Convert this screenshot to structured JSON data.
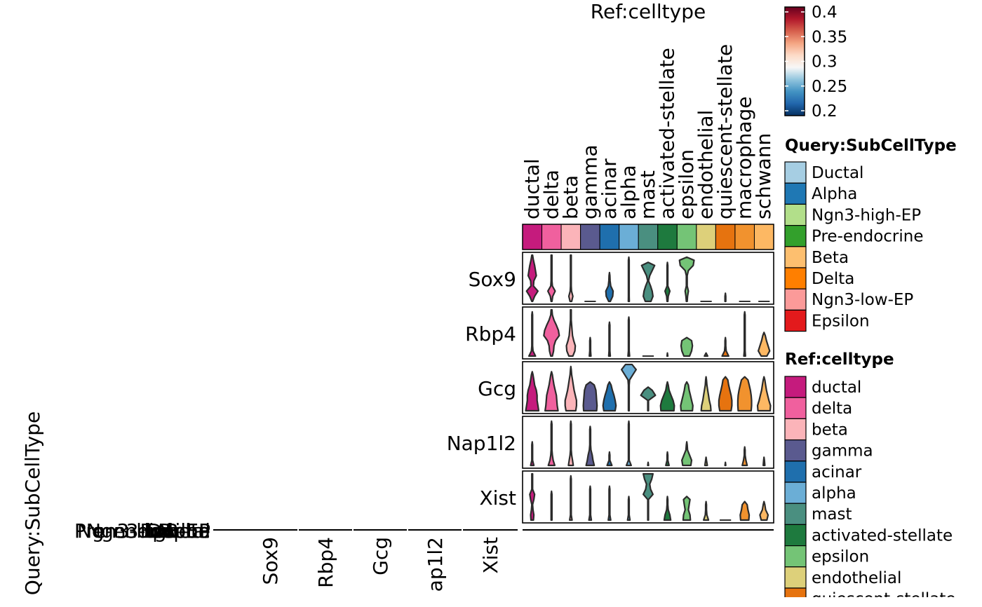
{
  "chart_data": [
    {
      "type": "violin",
      "title": "Ref:celltype",
      "genes": [
        "Sox9",
        "Rbp4",
        "Gcg",
        "Nap1l2",
        "Xist"
      ],
      "celltypes": [
        "ductal",
        "delta",
        "beta",
        "gamma",
        "acinar",
        "alpha",
        "mast",
        "activated-stellate",
        "epsilon",
        "endothelial",
        "quiescent-stellate",
        "macrophage",
        "schwann"
      ],
      "celltype_colors": [
        "#C51B7D",
        "#F0609E",
        "#FBB4B9",
        "#5A5A8F",
        "#1F6FAD",
        "#6BAED6",
        "#4A8F80",
        "#1E7A3E",
        "#74C476",
        "#DDD07A",
        "#E6730F",
        "#F1922E",
        "#FDB863"
      ],
      "profiles": {
        "Sox9": [
          [
            0.05,
            0.3,
            0.7,
            0.15,
            0.2,
            0.5,
            0.4,
            0.3,
            0.15,
            0.05
          ],
          [
            0.05,
            0.15,
            0.45,
            0.1,
            0.05,
            0.05,
            0.05,
            0.05,
            0.05,
            0.05
          ],
          [
            0.1,
            0.25,
            0.08,
            0.05,
            0.05,
            0.05,
            0.05,
            0.05,
            0.05,
            0.05
          ],
          [
            0,
            0,
            0,
            0,
            0,
            0,
            0,
            0,
            0,
            0
          ],
          [
            0.1,
            0.4,
            0.45,
            0.15,
            0.08,
            0.05,
            0,
            0,
            0,
            0
          ],
          [
            0.06,
            0.05,
            0.05,
            0.05,
            0.05,
            0.05,
            0.05,
            0.05,
            0.05,
            0
          ],
          [
            0.35,
            0.6,
            0.5,
            0.3,
            0.05,
            0.2,
            0.5,
            0.8,
            0,
            0
          ],
          [
            0.05,
            0.1,
            0.3,
            0.05,
            0.05,
            0.05,
            0.05,
            0.05,
            0,
            0
          ],
          [
            0.05,
            0.1,
            0.2,
            0.05,
            0.05,
            0.05,
            0.2,
            0.8,
            0.9,
            0
          ],
          [
            0,
            0,
            0,
            0,
            0,
            0,
            0,
            0,
            0,
            0
          ],
          [
            0.05,
            0.05,
            0,
            0,
            0,
            0,
            0,
            0,
            0,
            0
          ],
          [
            0,
            0,
            0,
            0,
            0,
            0,
            0,
            0,
            0,
            0
          ],
          [
            0,
            0,
            0,
            0,
            0,
            0,
            0,
            0,
            0,
            0
          ]
        ],
        "Rbp4": [
          [
            0.4,
            0.1,
            0.05,
            0.05,
            0.05,
            0.05,
            0.05,
            0.05,
            0.05,
            0
          ],
          [
            0.1,
            0.25,
            0.3,
            0.5,
            0.95,
            0.85,
            0.6,
            0.3,
            0.1,
            0.05
          ],
          [
            0.25,
            0.5,
            0.55,
            0.35,
            0.2,
            0.15,
            0.1,
            0.05,
            0.05,
            0.05
          ],
          [
            0.1,
            0.05,
            0.05,
            0.05,
            0,
            0,
            0,
            0,
            0,
            0
          ],
          [
            0.1,
            0.05,
            0.05,
            0.05,
            0.05,
            0.05,
            0.05,
            0,
            0,
            0
          ],
          [
            0.1,
            0.05,
            0.05,
            0.05,
            0.05,
            0.05,
            0.05,
            0.05,
            0,
            0
          ],
          [
            0,
            0,
            0,
            0,
            0,
            0,
            0,
            0,
            0,
            0
          ],
          [
            0.05,
            0,
            0,
            0,
            0,
            0,
            0,
            0,
            0,
            0
          ],
          [
            0.35,
            0.6,
            0.7,
            0.6,
            0,
            0,
            0,
            0,
            0,
            0
          ],
          [
            0.2,
            0,
            0,
            0,
            0,
            0,
            0,
            0,
            0,
            0
          ],
          [
            0.4,
            0.1,
            0.05,
            0.05,
            0,
            0,
            0,
            0,
            0,
            0
          ],
          [
            0.1,
            0.05,
            0.05,
            0.05,
            0.05,
            0.05,
            0.05,
            0.05,
            0.05,
            0
          ],
          [
            0.35,
            0.7,
            0.5,
            0.3,
            0.15,
            0,
            0,
            0,
            0,
            0
          ]
        ],
        "Gcg": [
          [
            0.8,
            0.7,
            0.6,
            0.6,
            0.5,
            0.3,
            0.2,
            0.1,
            0,
            0
          ],
          [
            0.8,
            0.7,
            0.65,
            0.6,
            0.45,
            0.3,
            0.2,
            0.1,
            0,
            0
          ],
          [
            0.6,
            0.7,
            0.7,
            0.55,
            0.4,
            0.3,
            0.2,
            0.1,
            0.05,
            0
          ],
          [
            0.8,
            0.85,
            0.8,
            0.75,
            0.7,
            0.5,
            0,
            0,
            0,
            0
          ],
          [
            0.7,
            0.8,
            0.7,
            0.55,
            0.35,
            0.2,
            0,
            0,
            0,
            0
          ],
          [
            0.05,
            0.05,
            0.05,
            0.05,
            0.05,
            0.05,
            0.1,
            0.5,
            0.9,
            0.4
          ],
          [
            0,
            0,
            0,
            0.9,
            0.5,
            0,
            0,
            0,
            0,
            0
          ],
          [
            0.8,
            0.85,
            0.7,
            0.45,
            0.2,
            0.1,
            0,
            0,
            0,
            0
          ],
          [
            0.7,
            0.75,
            0.6,
            0.45,
            0.3,
            0.2,
            0,
            0,
            0,
            0
          ],
          [
            0.6,
            0.55,
            0.4,
            0.3,
            0.2,
            0.1,
            0.05,
            0,
            0,
            0
          ],
          [
            0.7,
            0.8,
            0.8,
            0.7,
            0.55,
            0.4,
            0.3,
            0,
            0,
            0
          ],
          [
            0.8,
            0.85,
            0.85,
            0.8,
            0.7,
            0.55,
            0.4,
            0,
            0,
            0
          ],
          [
            0.75,
            0.8,
            0.6,
            0.45,
            0.3,
            0.2,
            0.1,
            0,
            0,
            0
          ]
        ],
        "Nap1l2": [
          [
            0.2,
            0.05,
            0.05,
            0.05,
            0.05,
            0,
            0,
            0,
            0,
            0
          ],
          [
            0.4,
            0.2,
            0.1,
            0.05,
            0.05,
            0.05,
            0.05,
            0.05,
            0.05,
            0
          ],
          [
            0.3,
            0.2,
            0.1,
            0.05,
            0.05,
            0.05,
            0.05,
            0.05,
            0.05,
            0
          ],
          [
            0.5,
            0.35,
            0.25,
            0.1,
            0.05,
            0.05,
            0.05,
            0.05,
            0,
            0
          ],
          [
            0.3,
            0.05,
            0.05,
            0,
            0,
            0,
            0,
            0,
            0,
            0
          ],
          [
            0.3,
            0.05,
            0.05,
            0.05,
            0.05,
            0.05,
            0.05,
            0.05,
            0.05,
            0
          ],
          [
            0.05,
            0,
            0,
            0,
            0,
            0,
            0,
            0,
            0,
            0
          ],
          [
            0.2,
            0.05,
            0.05,
            0,
            0,
            0,
            0,
            0,
            0,
            0
          ],
          [
            0.5,
            0.6,
            0.35,
            0.1,
            0.05,
            0,
            0,
            0,
            0,
            0
          ],
          [
            0.15,
            0.05,
            0,
            0,
            0,
            0,
            0,
            0,
            0,
            0
          ],
          [
            0.05,
            0,
            0,
            0,
            0,
            0,
            0,
            0,
            0,
            0
          ],
          [
            0.3,
            0.15,
            0.05,
            0.05,
            0,
            0,
            0,
            0,
            0,
            0
          ],
          [
            0.1,
            0.05,
            0,
            0,
            0,
            0,
            0,
            0,
            0,
            0
          ]
        ],
        "Xist": [
          [
            0.15,
            0.2,
            0.1,
            0.05,
            0.2,
            0.3,
            0.05,
            0.05,
            0.05,
            0.05
          ],
          [
            0.05,
            0.05,
            0.05,
            0.05,
            0.05,
            0.05,
            0,
            0,
            0,
            0
          ],
          [
            0.15,
            0.05,
            0.05,
            0.05,
            0.05,
            0.05,
            0.05,
            0.05,
            0.05,
            0
          ],
          [
            0.15,
            0.05,
            0.05,
            0.05,
            0.05,
            0.05,
            0.05,
            0,
            0,
            0
          ],
          [
            0.15,
            0.05,
            0.05,
            0.05,
            0.05,
            0.05,
            0.05,
            0,
            0,
            0
          ],
          [
            0.15,
            0.05,
            0.05,
            0.05,
            0.05,
            0,
            0,
            0,
            0,
            0
          ],
          [
            0,
            0,
            0,
            0,
            0,
            0.6,
            0.3,
            0.2,
            0.45,
            0.6
          ],
          [
            0.4,
            0.3,
            0.1,
            0.05,
            0.05,
            0,
            0,
            0,
            0,
            0
          ],
          [
            0.45,
            0.4,
            0.2,
            0.3,
            0.4,
            0,
            0,
            0,
            0,
            0
          ],
          [
            0.3,
            0.1,
            0.05,
            0.05,
            0,
            0,
            0,
            0,
            0,
            0
          ],
          [
            0,
            0,
            0,
            0,
            0,
            0,
            0,
            0,
            0,
            0
          ],
          [
            0.5,
            0.55,
            0.4,
            0.3,
            0,
            0,
            0,
            0,
            0,
            0
          ],
          [
            0.35,
            0.5,
            0.2,
            0.1,
            0,
            0,
            0,
            0,
            0,
            0
          ]
        ]
      },
      "colorbar": {
        "ticks": [
          0.4,
          0.35,
          0.3,
          0.25,
          0.2
        ],
        "labels": [
          "0.4",
          "0.35",
          "0.3",
          "0.25",
          "0.2"
        ],
        "range": [
          0.2,
          0.4
        ],
        "palette": [
          "#053061",
          "#2166AC",
          "#4393C3",
          "#92C5DE",
          "#F7F7F7",
          "#FDDBC7",
          "#F4A582",
          "#D6604D",
          "#B2182B",
          "#67001F"
        ]
      }
    },
    {
      "type": "violin",
      "xlabel": "",
      "ylabel": "Query:SubCellType",
      "genes": [
        "Sox9",
        "Rbp4",
        "Gcg",
        "Nap1l2",
        "Xist"
      ],
      "gene_labels": [
        "Sox9",
        "Rbp4",
        "Gcg",
        "ap1l2",
        "Xist"
      ],
      "subcelltypes": [
        "Ductal",
        "Alpha",
        "Ngn3-high-EP",
        "Pre-endocrine",
        "Beta",
        "Delta",
        "Ngn3-low-EP",
        "Epsilon"
      ],
      "note_values": "all rows collapsed to zero height"
    }
  ],
  "legend_query": {
    "title": "Query:SubCellType",
    "items": [
      {
        "label": "Ductal",
        "color": "#A6CEE3"
      },
      {
        "label": "Alpha",
        "color": "#1F78B4"
      },
      {
        "label": "Ngn3-high-EP",
        "color": "#B2DF8A"
      },
      {
        "label": "Pre-endocrine",
        "color": "#33A02C"
      },
      {
        "label": "Beta",
        "color": "#FDBF6F"
      },
      {
        "label": "Delta",
        "color": "#FF7F00"
      },
      {
        "label": "Ngn3-low-EP",
        "color": "#FB9A99"
      },
      {
        "label": "Epsilon",
        "color": "#E31A1C"
      }
    ]
  },
  "legend_ref": {
    "title": "Ref:celltype",
    "items": [
      {
        "label": "ductal",
        "color": "#C51B7D"
      },
      {
        "label": "delta",
        "color": "#F0609E"
      },
      {
        "label": "beta",
        "color": "#FBB4B9"
      },
      {
        "label": "gamma",
        "color": "#5A5A8F"
      },
      {
        "label": "acinar",
        "color": "#1F6FAD"
      },
      {
        "label": "alpha",
        "color": "#6BAED6"
      },
      {
        "label": "mast",
        "color": "#4A8F80"
      },
      {
        "label": "activated-stellate",
        "color": "#1E7A3E"
      },
      {
        "label": "epsilon",
        "color": "#74C476"
      },
      {
        "label": "endothelial",
        "color": "#DDD07A"
      },
      {
        "label": "quiescent-stellate",
        "color": "#E6730F"
      }
    ]
  },
  "left_axis_labels": [
    "Ductal",
    "Alpha",
    "Ngn3-high-EP",
    "Pre-endocrine",
    "Beta",
    "Delta",
    "Ngn3-low-EP",
    "Epsilon"
  ]
}
